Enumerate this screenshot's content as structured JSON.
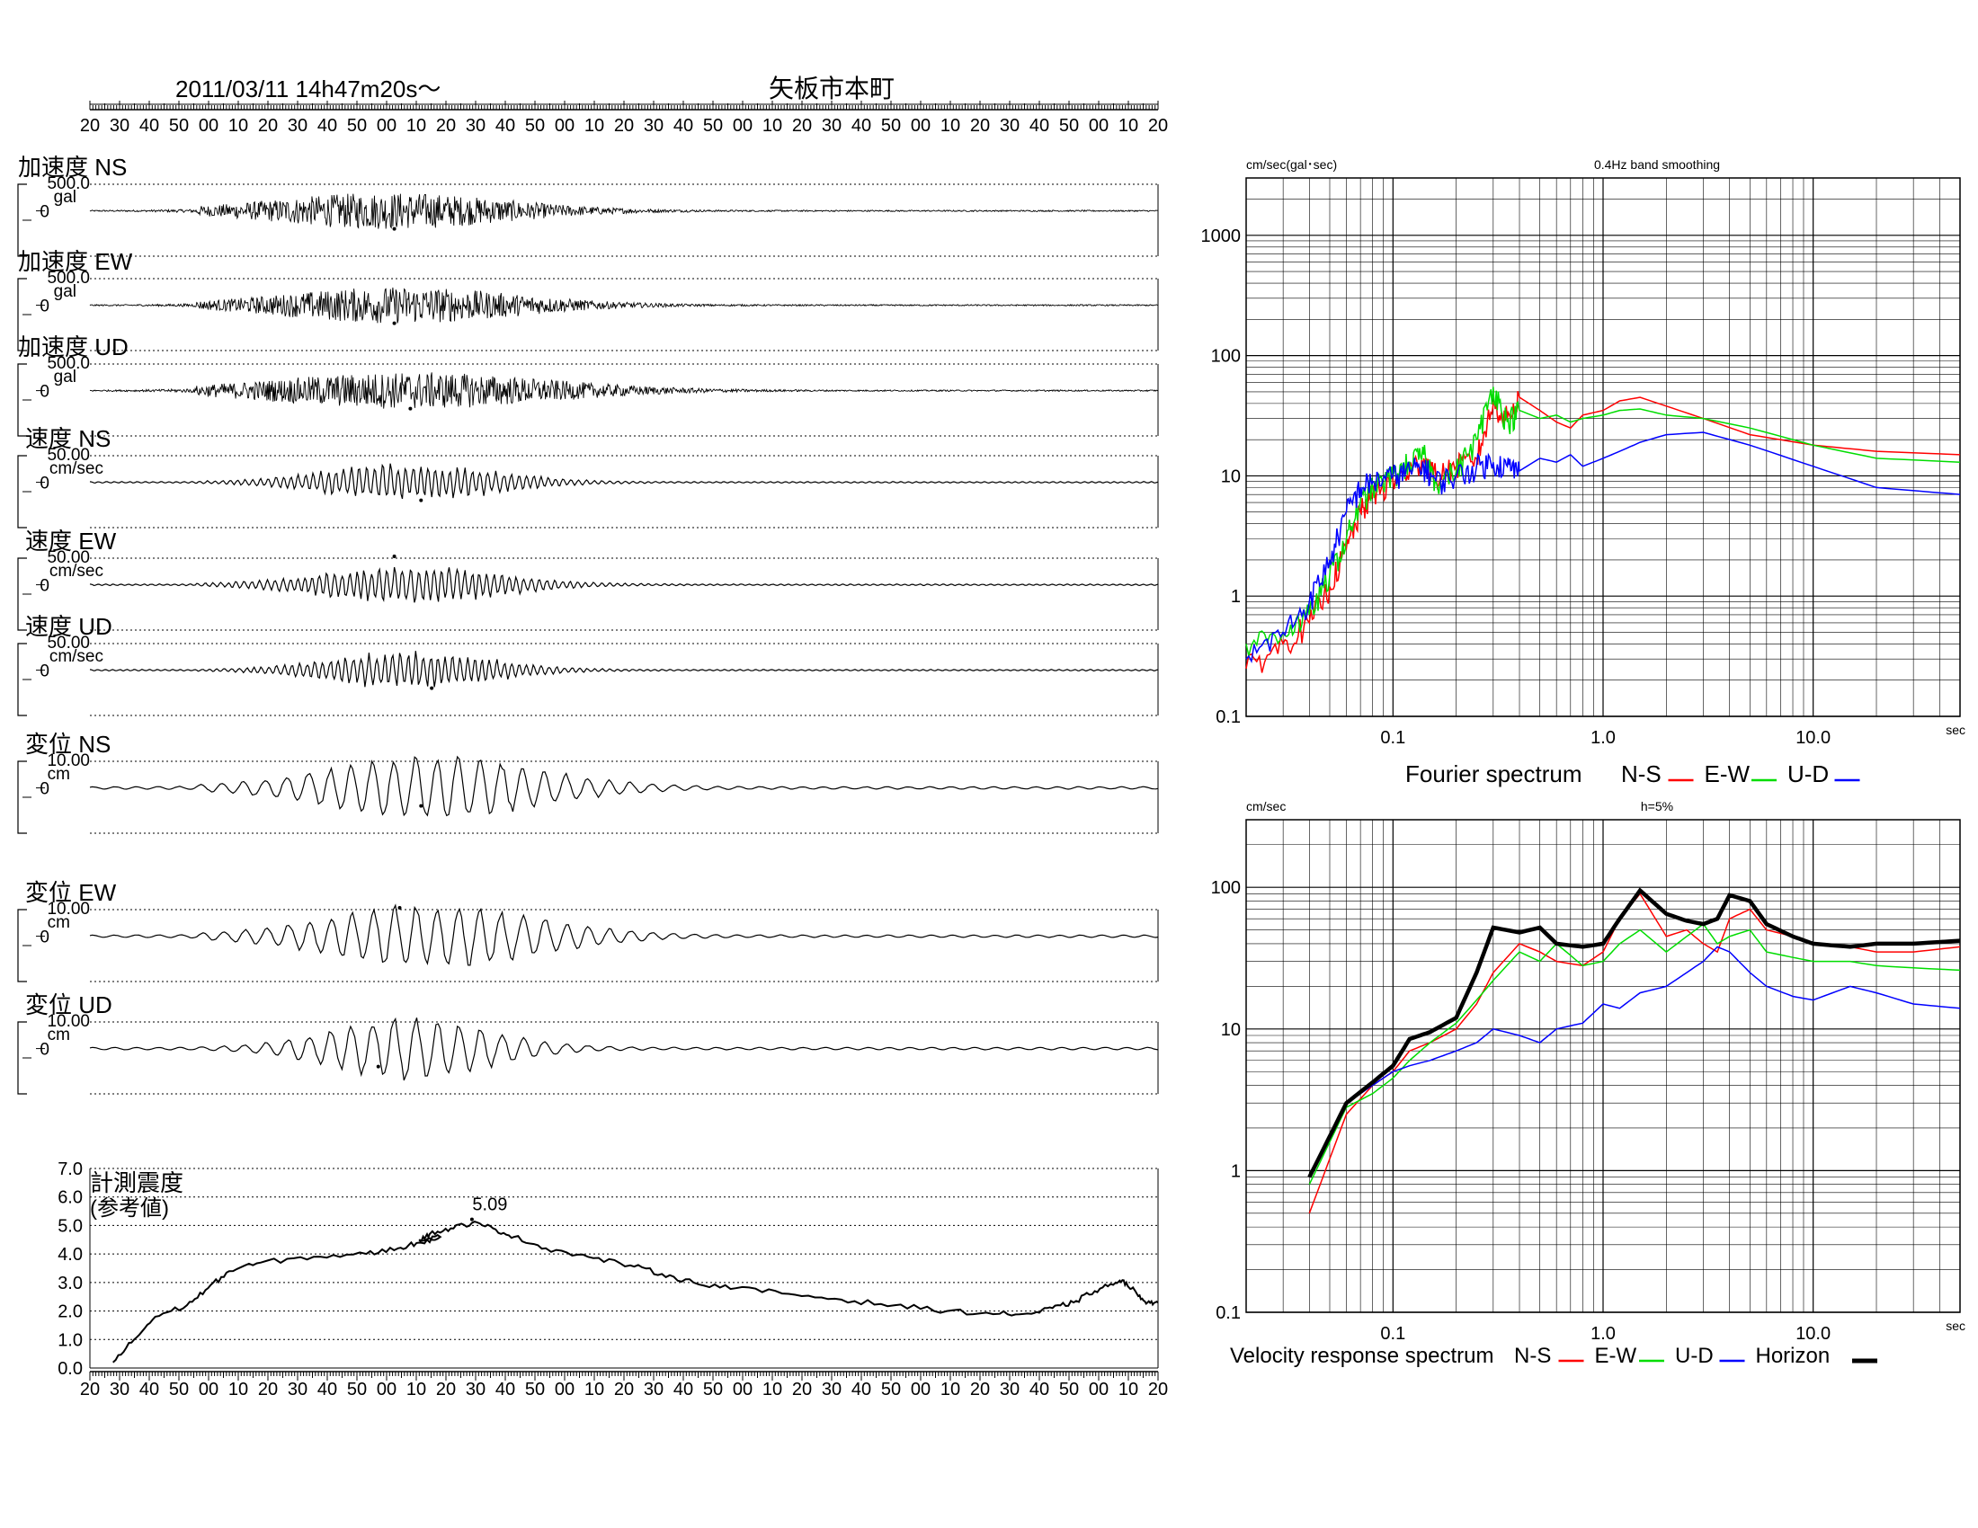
{
  "header": {
    "datetime": "2011/03/11  14h47m20s～",
    "station": "矢板市本町"
  },
  "time_axis_labels": [
    "20",
    "30",
    "40",
    "50",
    "00",
    "10",
    "20",
    "30",
    "40",
    "50",
    "00",
    "10",
    "20",
    "30",
    "40",
    "50",
    "00",
    "10",
    "20",
    "30",
    "40",
    "50",
    "00",
    "10",
    "20",
    "30",
    "40",
    "50",
    "00",
    "10",
    "20",
    "30",
    "40",
    "50",
    "00",
    "10",
    "20"
  ],
  "traces": [
    {
      "label": "加速度 NS",
      "max": "500.0",
      "unit": "gal",
      "zero": "0",
      "peak_pct": 0.285,
      "peak_sign": -1,
      "kind": "acc",
      "env_center": 0.28,
      "env_width": 0.22
    },
    {
      "label": "加速度 EW",
      "max": "500.0",
      "unit": "gal",
      "zero": "0",
      "peak_pct": 0.285,
      "peak_sign": -1,
      "kind": "acc",
      "env_center": 0.29,
      "env_width": 0.22
    },
    {
      "label": "加速度 UD",
      "max": "500.0",
      "unit": "gal",
      "zero": "0",
      "peak_pct": 0.3,
      "peak_sign": -1,
      "kind": "acc",
      "env_center": 0.3,
      "env_width": 0.26
    },
    {
      "label": "速度 NS",
      "max": "50.00",
      "unit": "cm/sec",
      "zero": "0",
      "peak_pct": 0.31,
      "peak_sign": -1,
      "kind": "vel",
      "env_center": 0.3,
      "env_width": 0.16
    },
    {
      "label": "速度 EW",
      "max": "50.00",
      "unit": "cm/sec",
      "zero": "0",
      "peak_pct": 0.285,
      "peak_sign": 1,
      "kind": "vel",
      "env_center": 0.3,
      "env_width": 0.17
    },
    {
      "label": "速度 UD",
      "max": "50.00",
      "unit": "cm/sec",
      "zero": "0",
      "peak_pct": 0.32,
      "peak_sign": -1,
      "kind": "vel",
      "env_center": 0.3,
      "env_width": 0.15
    },
    {
      "label": "変位 NS",
      "max": "10.00",
      "unit": "cm",
      "zero": "0",
      "peak_pct": 0.31,
      "peak_sign": -1,
      "kind": "disp",
      "env_center": 0.32,
      "env_width": 0.2
    },
    {
      "label": "変位 EW",
      "max": "10.00",
      "unit": "cm",
      "zero": "0",
      "peak_pct": 0.29,
      "peak_sign": 1,
      "kind": "disp",
      "env_center": 0.32,
      "env_width": 0.2
    },
    {
      "label": "変位 UD",
      "max": "10.00",
      "unit": "cm",
      "zero": "0",
      "peak_pct": 0.27,
      "peak_sign": -1,
      "kind": "disp",
      "env_center": 0.3,
      "env_width": 0.15
    }
  ],
  "intensity": {
    "title": "計測震度",
    "subtitle": "(参考値)",
    "peak_label": "5.09",
    "peak_value": 5.09,
    "yticks": [
      "0.0",
      "1.0",
      "2.0",
      "3.0",
      "4.0",
      "5.0",
      "6.0",
      "7.0"
    ],
    "ylim": [
      0,
      7
    ],
    "curve": [
      [
        0.01,
        0.2
      ],
      [
        0.03,
        1.0
      ],
      [
        0.05,
        1.8
      ],
      [
        0.08,
        2.2
      ],
      [
        0.1,
        2.8
      ],
      [
        0.12,
        3.4
      ],
      [
        0.15,
        3.7
      ],
      [
        0.2,
        3.9
      ],
      [
        0.25,
        4.0
      ],
      [
        0.28,
        4.2
      ],
      [
        0.3,
        4.4
      ],
      [
        0.32,
        4.6
      ],
      [
        0.3,
        4.5
      ],
      [
        0.31,
        4.7
      ],
      [
        0.33,
        4.9
      ],
      [
        0.35,
        5.09
      ],
      [
        0.37,
        4.9
      ],
      [
        0.39,
        4.6
      ],
      [
        0.42,
        4.2
      ],
      [
        0.46,
        3.9
      ],
      [
        0.5,
        3.6
      ],
      [
        0.53,
        3.3
      ],
      [
        0.56,
        3.0
      ],
      [
        0.6,
        2.8
      ],
      [
        0.65,
        2.6
      ],
      [
        0.7,
        2.4
      ],
      [
        0.75,
        2.2
      ],
      [
        0.8,
        2.0
      ],
      [
        0.85,
        1.9
      ],
      [
        0.88,
        1.9
      ],
      [
        0.9,
        2.1
      ],
      [
        0.92,
        2.3
      ],
      [
        0.94,
        2.7
      ],
      [
        0.96,
        3.0
      ],
      [
        0.97,
        3.0
      ],
      [
        0.98,
        2.6
      ],
      [
        0.99,
        2.3
      ],
      [
        1.0,
        2.3
      ]
    ]
  },
  "chart_data": [
    {
      "type": "line",
      "title": "0.4Hz band smoothing",
      "ylabel": "cm/sec(gal･sec)",
      "xunit": "sec",
      "legend_title": "Fourier spectrum",
      "xscale": "log",
      "yscale": "log",
      "xlim": [
        0.02,
        50
      ],
      "ylim": [
        0.1,
        3000
      ],
      "xtick_labels": [
        "0.1",
        "1.0",
        "10.0"
      ],
      "ytick_labels": [
        "0.1",
        "1",
        "10",
        "100",
        "1000"
      ],
      "series": [
        {
          "name": "N-S",
          "color": "#ff0000",
          "x": [
            0.02,
            0.03,
            0.04,
            0.05,
            0.06,
            0.07,
            0.08,
            0.1,
            0.12,
            0.14,
            0.16,
            0.2,
            0.25,
            0.3,
            0.35,
            0.4,
            0.5,
            0.6,
            0.7,
            0.8,
            1.0,
            1.2,
            1.5,
            2.0,
            3.0,
            5.0,
            10.0,
            20.0,
            50.0
          ],
          "y": [
            0.25,
            0.4,
            0.6,
            1.2,
            2.5,
            5,
            7,
            9,
            11,
            14,
            10,
            12,
            14,
            40,
            30,
            45,
            35,
            28,
            25,
            32,
            35,
            42,
            45,
            38,
            30,
            22,
            18,
            16,
            15
          ]
        },
        {
          "name": "E-W",
          "color": "#00dd00",
          "x": [
            0.02,
            0.03,
            0.04,
            0.05,
            0.06,
            0.07,
            0.08,
            0.1,
            0.12,
            0.14,
            0.16,
            0.2,
            0.25,
            0.3,
            0.35,
            0.4,
            0.5,
            0.6,
            0.7,
            0.8,
            1.0,
            1.2,
            1.5,
            2.0,
            3.0,
            5.0,
            10.0,
            20.0,
            50.0
          ],
          "y": [
            0.4,
            0.5,
            0.7,
            1.5,
            3,
            6,
            8,
            10,
            13,
            15,
            9,
            11,
            20,
            55,
            28,
            35,
            30,
            32,
            28,
            30,
            32,
            35,
            36,
            32,
            30,
            25,
            18,
            14,
            13
          ]
        },
        {
          "name": "U-D",
          "color": "#0000ff",
          "x": [
            0.02,
            0.03,
            0.04,
            0.05,
            0.06,
            0.07,
            0.08,
            0.1,
            0.12,
            0.14,
            0.16,
            0.2,
            0.25,
            0.3,
            0.35,
            0.4,
            0.5,
            0.6,
            0.7,
            0.8,
            1.0,
            1.2,
            1.5,
            2.0,
            3.0,
            5.0,
            10.0,
            20.0,
            50.0
          ],
          "y": [
            0.3,
            0.5,
            0.9,
            2,
            5,
            8,
            9,
            10,
            11,
            12,
            9,
            10,
            12,
            13,
            12,
            11,
            14,
            13,
            15,
            12,
            14,
            16,
            19,
            22,
            23,
            18,
            12,
            8,
            7
          ]
        }
      ]
    },
    {
      "type": "line",
      "title": "h=5%",
      "ylabel": "cm/sec",
      "xunit": "sec",
      "legend_title": "Velocity response spectrum",
      "xscale": "log",
      "yscale": "log",
      "xlim": [
        0.02,
        50
      ],
      "ylim": [
        0.1,
        300
      ],
      "xtick_labels": [
        "0.1",
        "1.0",
        "10.0"
      ],
      "ytick_labels": [
        "0.1",
        "1",
        "10",
        "100"
      ],
      "series": [
        {
          "name": "N-S",
          "color": "#ff0000",
          "x": [
            0.04,
            0.06,
            0.08,
            0.1,
            0.12,
            0.15,
            0.2,
            0.25,
            0.3,
            0.4,
            0.5,
            0.6,
            0.8,
            1.0,
            1.2,
            1.5,
            2.0,
            2.5,
            3.0,
            3.5,
            4.0,
            5.0,
            6.0,
            8.0,
            10,
            15,
            20,
            30,
            50
          ],
          "y": [
            0.5,
            2.5,
            4,
            5,
            7,
            8,
            10,
            15,
            25,
            40,
            35,
            30,
            28,
            35,
            60,
            90,
            45,
            50,
            40,
            35,
            60,
            70,
            50,
            45,
            40,
            38,
            35,
            35,
            38
          ]
        },
        {
          "name": "E-W",
          "color": "#00dd00",
          "x": [
            0.04,
            0.06,
            0.08,
            0.1,
            0.12,
            0.15,
            0.2,
            0.25,
            0.3,
            0.4,
            0.5,
            0.6,
            0.8,
            1.0,
            1.2,
            1.5,
            2.0,
            2.5,
            3.0,
            3.5,
            4.0,
            5.0,
            6.0,
            8.0,
            10,
            15,
            20,
            30,
            50
          ],
          "y": [
            0.8,
            2.8,
            3.5,
            4.5,
            6,
            8,
            11,
            16,
            22,
            35,
            30,
            40,
            28,
            30,
            40,
            50,
            35,
            45,
            55,
            40,
            45,
            50,
            35,
            32,
            30,
            30,
            28,
            27,
            26
          ]
        },
        {
          "name": "U-D",
          "color": "#0000ff",
          "x": [
            0.04,
            0.06,
            0.08,
            0.1,
            0.12,
            0.15,
            0.2,
            0.25,
            0.3,
            0.4,
            0.5,
            0.6,
            0.8,
            1.0,
            1.2,
            1.5,
            2.0,
            2.5,
            3.0,
            3.5,
            4.0,
            5.0,
            6.0,
            8.0,
            10,
            15,
            20,
            30,
            50
          ],
          "y": [
            0.9,
            3,
            4,
            5,
            5.5,
            6,
            7,
            8,
            10,
            9,
            8,
            10,
            11,
            15,
            14,
            18,
            20,
            25,
            30,
            38,
            35,
            25,
            20,
            17,
            16,
            20,
            18,
            15,
            14
          ]
        },
        {
          "name": "Horizon",
          "color": "#000000",
          "x": [
            0.04,
            0.06,
            0.08,
            0.1,
            0.12,
            0.15,
            0.2,
            0.25,
            0.3,
            0.4,
            0.5,
            0.6,
            0.8,
            1.0,
            1.2,
            1.5,
            2.0,
            2.5,
            3.0,
            3.5,
            4.0,
            5.0,
            6.0,
            8.0,
            10,
            15,
            20,
            30,
            50
          ],
          "y": [
            0.9,
            3,
            4.2,
            5.5,
            8.5,
            9.5,
            12,
            25,
            52,
            48,
            52,
            40,
            38,
            40,
            60,
            95,
            65,
            58,
            55,
            60,
            88,
            80,
            55,
            45,
            40,
            38,
            40,
            40,
            42
          ]
        }
      ]
    }
  ]
}
